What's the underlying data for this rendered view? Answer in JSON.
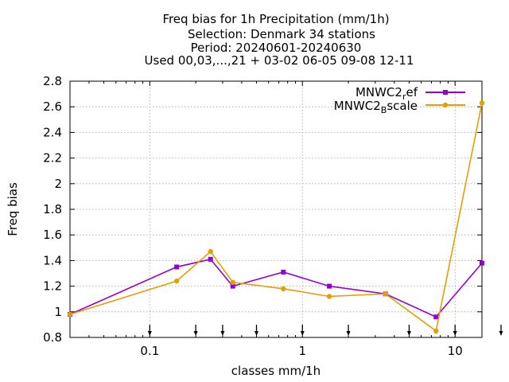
{
  "chart_data": {
    "type": "line",
    "title_lines": [
      "Freq bias  for 1h Precipitation (mm/1h)",
      "Selection: Denmark      34 stations",
      "Period: 20240601-20240630",
      "Used 00,03,...,21 + 03-02 06-05 09-08 12-11"
    ],
    "xlabel": "classes mm/1h",
    "ylabel": "Freq bias",
    "xscale": "log",
    "xlim": [
      0.03,
      15
    ],
    "ylim": [
      0.8,
      2.8
    ],
    "grid": true,
    "legend_position": "top-right",
    "x_ticks": [
      {
        "value": 0.1,
        "label": "0.1"
      },
      {
        "value": 1,
        "label": "1"
      },
      {
        "value": 10,
        "label": "10"
      }
    ],
    "y_ticks": [
      {
        "value": 0.8,
        "label": "0.8"
      },
      {
        "value": 1.0,
        "label": "1"
      },
      {
        "value": 1.2,
        "label": "1.2"
      },
      {
        "value": 1.4,
        "label": "1.4"
      },
      {
        "value": 1.6,
        "label": "1.6"
      },
      {
        "value": 1.8,
        "label": "1.8"
      },
      {
        "value": 2.0,
        "label": "2"
      },
      {
        "value": 2.2,
        "label": "2.2"
      },
      {
        "value": 2.4,
        "label": "2.4"
      },
      {
        "value": 2.6,
        "label": "2.6"
      },
      {
        "value": 2.8,
        "label": "2.8"
      }
    ],
    "class_markers_x": [
      0.1,
      0.2,
      0.3,
      0.5,
      1,
      2,
      5,
      10,
      20
    ],
    "series": [
      {
        "name_main": "MNWC2",
        "name_sub": "r",
        "name_rest": "ef",
        "color": "#9400d3",
        "marker": "filled-square",
        "x": [
          0.03,
          0.15,
          0.25,
          0.35,
          0.75,
          1.5,
          3.5,
          7.5,
          15
        ],
        "y": [
          0.98,
          1.35,
          1.41,
          1.2,
          1.31,
          1.2,
          1.14,
          0.96,
          1.38
        ]
      },
      {
        "name_main": "MNWC2",
        "name_sub": "B",
        "name_rest": "scale",
        "color": "#e69f00",
        "marker": "filled-circle",
        "x": [
          0.03,
          0.15,
          0.25,
          0.35,
          0.75,
          1.5,
          3.5,
          7.5,
          15
        ],
        "y": [
          0.98,
          1.24,
          1.47,
          1.23,
          1.18,
          1.12,
          1.14,
          0.85,
          2.63
        ]
      }
    ]
  }
}
